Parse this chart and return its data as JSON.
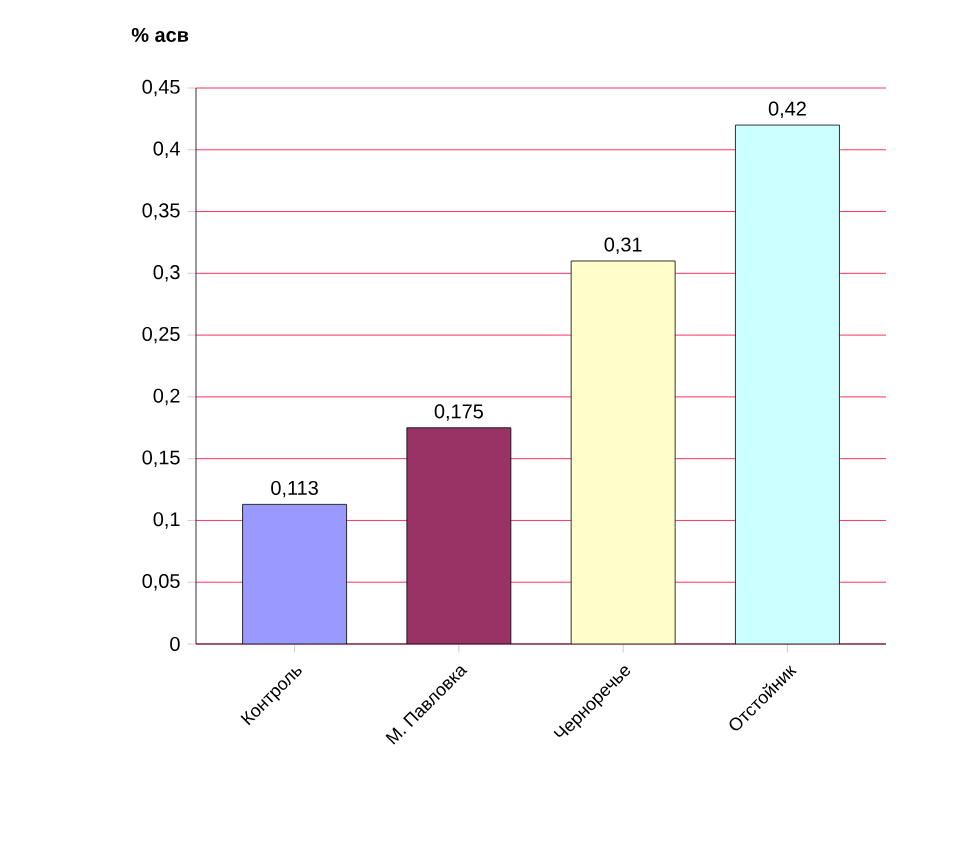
{
  "chart_data": {
    "type": "bar",
    "ylabel": "**% асв**",
    "categories": [
      "Контроль",
      "М. Павловка",
      "Черноречье",
      "Отстойник"
    ],
    "values": [
      0.113,
      0.175,
      0.31,
      0.42
    ],
    "value_labels": [
      "0,113",
      "0,175",
      "0,31",
      "0,42"
    ],
    "colors": [
      "#9999ff",
      "#993366",
      "#ffffcc",
      "#ccffff"
    ],
    "ylim": [
      0,
      0.45
    ],
    "yticks": [
      0,
      {
        "value": 0.05,
        "label": "0,05"
      },
      {
        "value": 0.1,
        "label": "0,1"
      },
      {
        "value": 0.15,
        "label": "0,15"
      },
      {
        "value": 0.2,
        "label": "0,2"
      },
      {
        "value": 0.25,
        "label": "0,25"
      },
      {
        "value": 0.3,
        "label": "0,3"
      },
      {
        "value": 0.35,
        "label": "0,35"
      },
      {
        "value": 0.4,
        "label": "0,4"
      },
      {
        "value": 0.45,
        "label": "0,45"
      }
    ],
    "grid": "y"
  }
}
